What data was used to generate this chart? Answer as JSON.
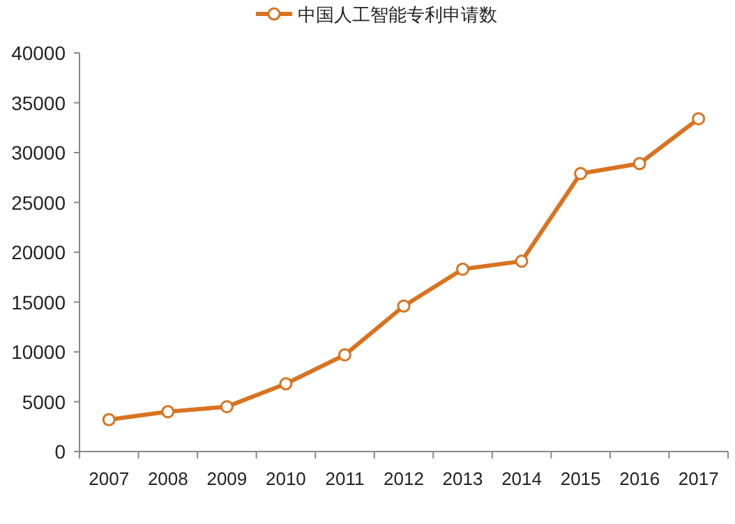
{
  "chart_data": {
    "type": "line",
    "categories": [
      "2007",
      "2008",
      "2009",
      "2010",
      "2011",
      "2012",
      "2013",
      "2014",
      "2015",
      "2016",
      "2017"
    ],
    "series": [
      {
        "name": "中国人工智能专利申请数",
        "color": "#d9731f",
        "values": [
          3200,
          4000,
          4500,
          6800,
          9700,
          14600,
          18300,
          19100,
          27900,
          28900,
          33400
        ]
      }
    ],
    "ylim": [
      0,
      40000
    ],
    "yticks": [
      0,
      5000,
      10000,
      15000,
      20000,
      25000,
      30000,
      35000,
      40000
    ],
    "marker": "circle",
    "legend": "top",
    "grid": false
  }
}
